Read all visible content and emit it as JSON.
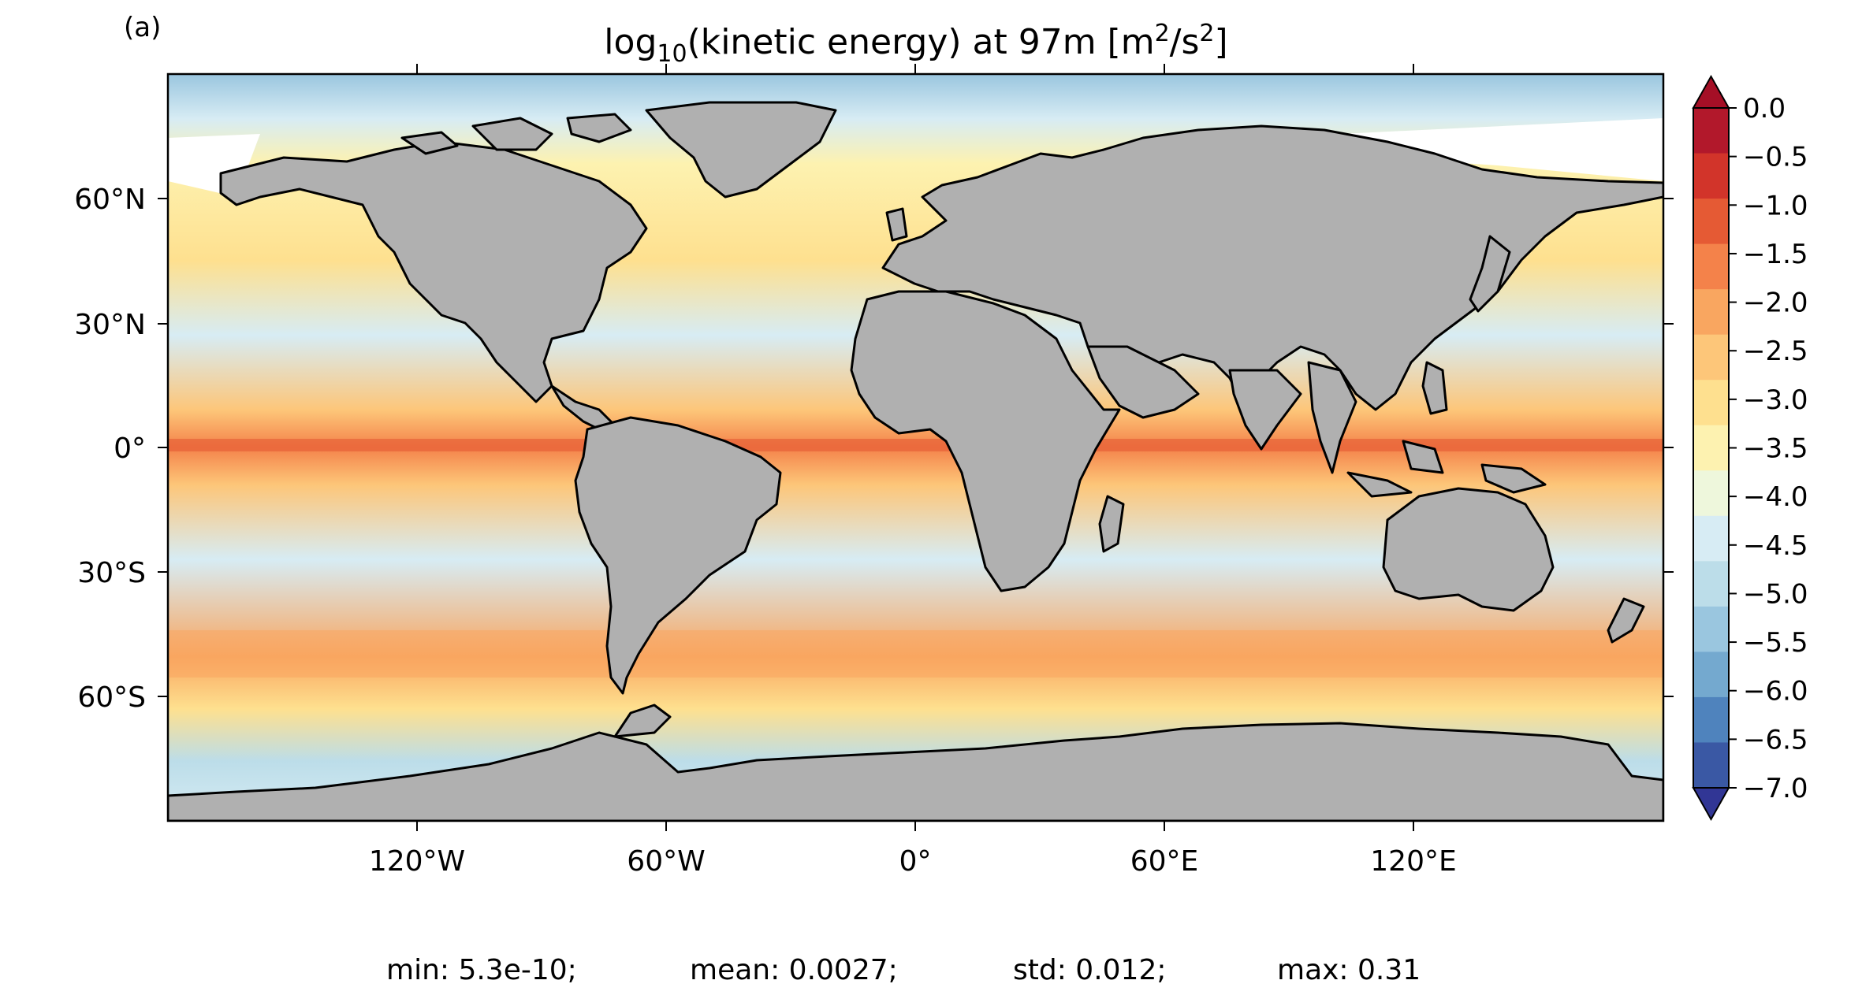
{
  "panel_label": "(a)",
  "title": {
    "main": "log",
    "subscript": "10",
    "middle": "(kinetic energy) at 97m [m",
    "sup1": "2",
    "slash": "/s",
    "sup2": "2",
    "close": "]"
  },
  "colors": {
    "land": "#b0b0b0",
    "ice_free_white": "#ffffff",
    "coast": "#000000"
  },
  "y_ticks": [
    "60°N",
    "30°N",
    "0°",
    "30°S",
    "60°S"
  ],
  "x_ticks": [
    "120°W",
    "60°W",
    "0°",
    "60°E",
    "120°E"
  ],
  "colorbar": {
    "ticks": [
      "0.0",
      "−0.5",
      "−1.0",
      "−1.5",
      "−2.0",
      "−2.5",
      "−3.0",
      "−3.5",
      "−4.0",
      "−4.5",
      "−5.0",
      "−5.5",
      "−6.0",
      "−6.5",
      "−7.0"
    ],
    "colors_top_to_bottom": [
      "#b2182b",
      "#d2342a",
      "#e55a34",
      "#f4824a",
      "#f9a660",
      "#fdc679",
      "#fee08f",
      "#fdf2b0",
      "#eef7dc",
      "#d7ecf4",
      "#bcdde9",
      "#9ac6df",
      "#74a9cf",
      "#4f83bd",
      "#3a58a4"
    ],
    "over_color": "#a50f26",
    "under_color": "#313695"
  },
  "stats": {
    "min": "min: 5.3e-10;",
    "mean": "mean: 0.0027;",
    "std": "std: 0.012;",
    "max": "max: 0.31"
  }
}
